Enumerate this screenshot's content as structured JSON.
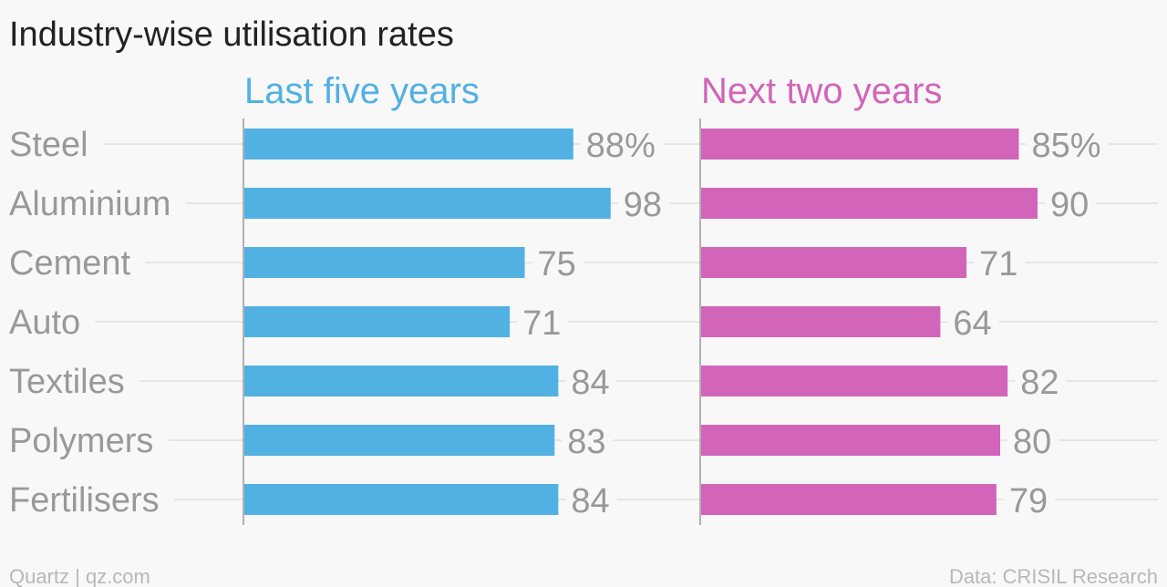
{
  "title": "Industry-wise utilisation rates",
  "footer": {
    "source_left": "Quartz | qz.com",
    "source_right": "Data: CRISIL Research"
  },
  "colors": {
    "last_five": "#51b1e3",
    "next_two": "#d265b9",
    "text_muted": "#999999",
    "grid": "#e6e6e6",
    "axis": "#999999"
  },
  "chart_data": {
    "type": "bar",
    "orientation": "horizontal",
    "title": "Industry-wise utilisation rates",
    "categories": [
      "Steel",
      "Aluminium",
      "Cement",
      "Auto",
      "Textiles",
      "Polymers",
      "Fertilisers"
    ],
    "unit": "%",
    "xlim": [
      0,
      100
    ],
    "grid": true,
    "series": [
      {
        "name": "Last five years",
        "values": [
          88,
          98,
          75,
          71,
          84,
          83,
          84
        ],
        "labels": [
          "88%",
          "98",
          "75",
          "71",
          "84",
          "83",
          "84"
        ]
      },
      {
        "name": "Next two years",
        "values": [
          85,
          90,
          71,
          64,
          82,
          80,
          79
        ],
        "labels": [
          "85%",
          "90",
          "71",
          "64",
          "82",
          "80",
          "79"
        ]
      }
    ]
  }
}
